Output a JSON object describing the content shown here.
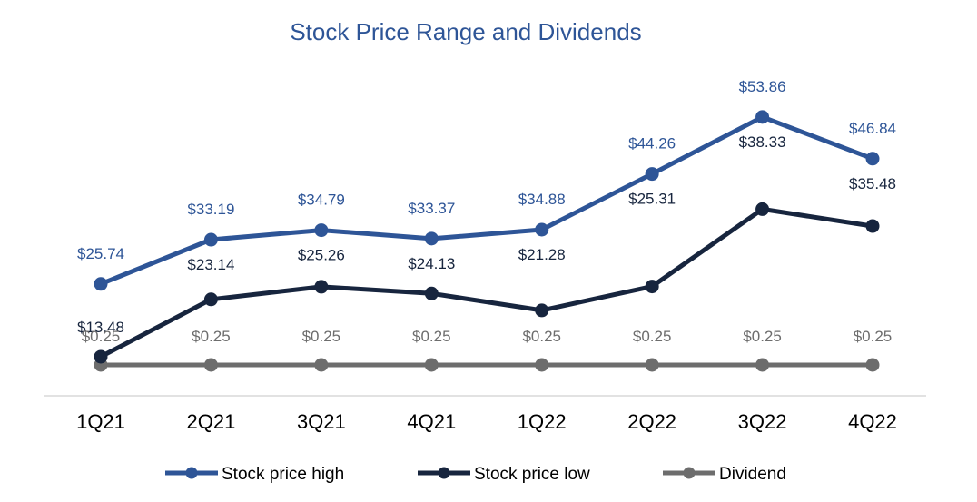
{
  "chart_data": {
    "type": "line",
    "title": "Stock Price Range and Dividends",
    "xlabel": "",
    "ylabel": "",
    "categories": [
      "1Q21",
      "2Q21",
      "3Q21",
      "4Q21",
      "1Q22",
      "2Q22",
      "3Q22",
      "4Q22"
    ],
    "ylim": [
      0,
      60
    ],
    "grid": false,
    "legend_position": "bottom",
    "series": [
      {
        "name": "Stock price high",
        "color": "#2e5597",
        "label_color": "#2e5597",
        "values": [
          25.74,
          33.19,
          34.79,
          33.37,
          34.88,
          44.26,
          53.86,
          46.84
        ],
        "labels": [
          "$25.74",
          "$33.19",
          "$34.79",
          "$33.37",
          "$34.88",
          "$44.26",
          "$53.86",
          "$46.84"
        ]
      },
      {
        "name": "Stock price low",
        "color": "#17253e",
        "label_color": "#17253e",
        "values": [
          13.48,
          23.14,
          25.26,
          24.13,
          21.28,
          25.31,
          38.33,
          35.48
        ],
        "labels": [
          "$13.48",
          "$23.14",
          "$25.26",
          "$24.13",
          "$21.28",
          "$25.31",
          "$38.33",
          "$35.48"
        ]
      },
      {
        "name": "Dividend",
        "color": "#6d6d6d",
        "label_color": "#6d6d6d",
        "values": [
          0.25,
          0.25,
          0.25,
          0.25,
          0.25,
          0.25,
          0.25,
          0.25
        ],
        "labels": [
          "$0.25",
          "$0.25",
          "$0.25",
          "$0.25",
          "$0.25",
          "$0.25",
          "$0.25",
          "$0.25"
        ]
      }
    ]
  }
}
